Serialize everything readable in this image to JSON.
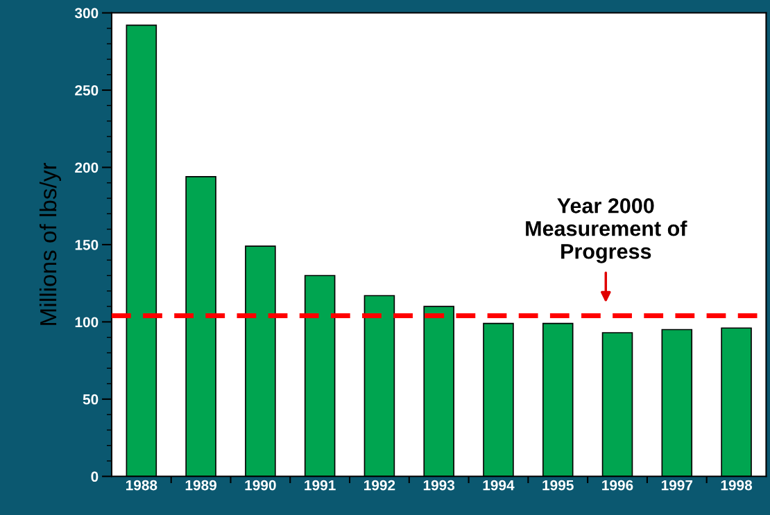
{
  "chart_data": {
    "type": "bar",
    "ylabel": "Millions of lbs/yr",
    "categories": [
      "1988",
      "1989",
      "1990",
      "1991",
      "1992",
      "1993",
      "1994",
      "1995",
      "1996",
      "1997",
      "1998"
    ],
    "values": [
      292,
      194,
      149,
      130,
      117,
      110,
      99,
      99,
      93,
      95,
      96
    ],
    "color": "#00a550",
    "ylim": [
      0,
      300
    ],
    "yticks": [
      0,
      50,
      100,
      150,
      200,
      250,
      300
    ],
    "grid": false,
    "ref_lines": [
      {
        "axis": "y",
        "value": 104,
        "color": "#ff0000",
        "line_style": "dashed"
      }
    ],
    "annotations": [
      "Year 2000\nMeasurement of\nProgress"
    ]
  }
}
